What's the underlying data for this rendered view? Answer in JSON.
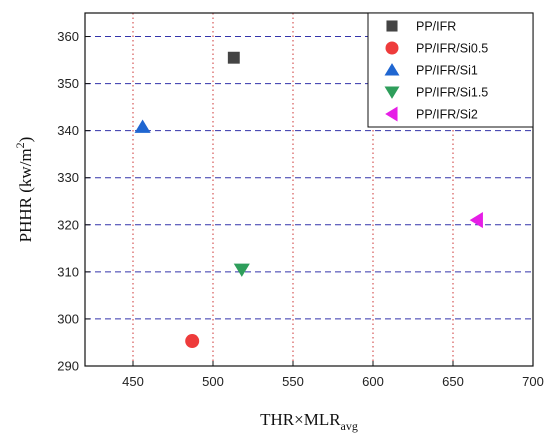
{
  "chart_data": {
    "type": "scatter",
    "xlabel": "THR×MLR",
    "xlabel_sub": "avg",
    "ylabel": "PHHR (kw/m",
    "ylabel_sup": "2",
    "ylabel_end": ")",
    "xlim": [
      420,
      700
    ],
    "ylim": [
      290,
      365
    ],
    "xticks": [
      450,
      500,
      550,
      600,
      650,
      700
    ],
    "yticks": [
      290,
      300,
      310,
      320,
      330,
      340,
      350,
      360
    ],
    "vertical_grid": {
      "style": "dotted",
      "color": "#cc3333"
    },
    "horizontal_grid": {
      "style": "dashed",
      "color": "#3333aa"
    },
    "legend_position": "top-right",
    "series": [
      {
        "name": "PP/IFR",
        "marker": "square",
        "color": "#444444",
        "x": [
          513
        ],
        "y": [
          355.5
        ]
      },
      {
        "name": "PP/IFR/Si0.5",
        "marker": "circle",
        "color": "#ee3b3b",
        "x": [
          487
        ],
        "y": [
          295.3
        ]
      },
      {
        "name": "PP/IFR/Si1",
        "marker": "triangle-up",
        "color": "#1f66d1",
        "x": [
          456
        ],
        "y": [
          340.8
        ]
      },
      {
        "name": "PP/IFR/Si1.5",
        "marker": "triangle-down",
        "color": "#2e9e5b",
        "x": [
          518
        ],
        "y": [
          310.5
        ]
      },
      {
        "name": "PP/IFR/Si2",
        "marker": "triangle-left",
        "color": "#e61ee6",
        "x": [
          665
        ],
        "y": [
          321
        ]
      }
    ]
  }
}
